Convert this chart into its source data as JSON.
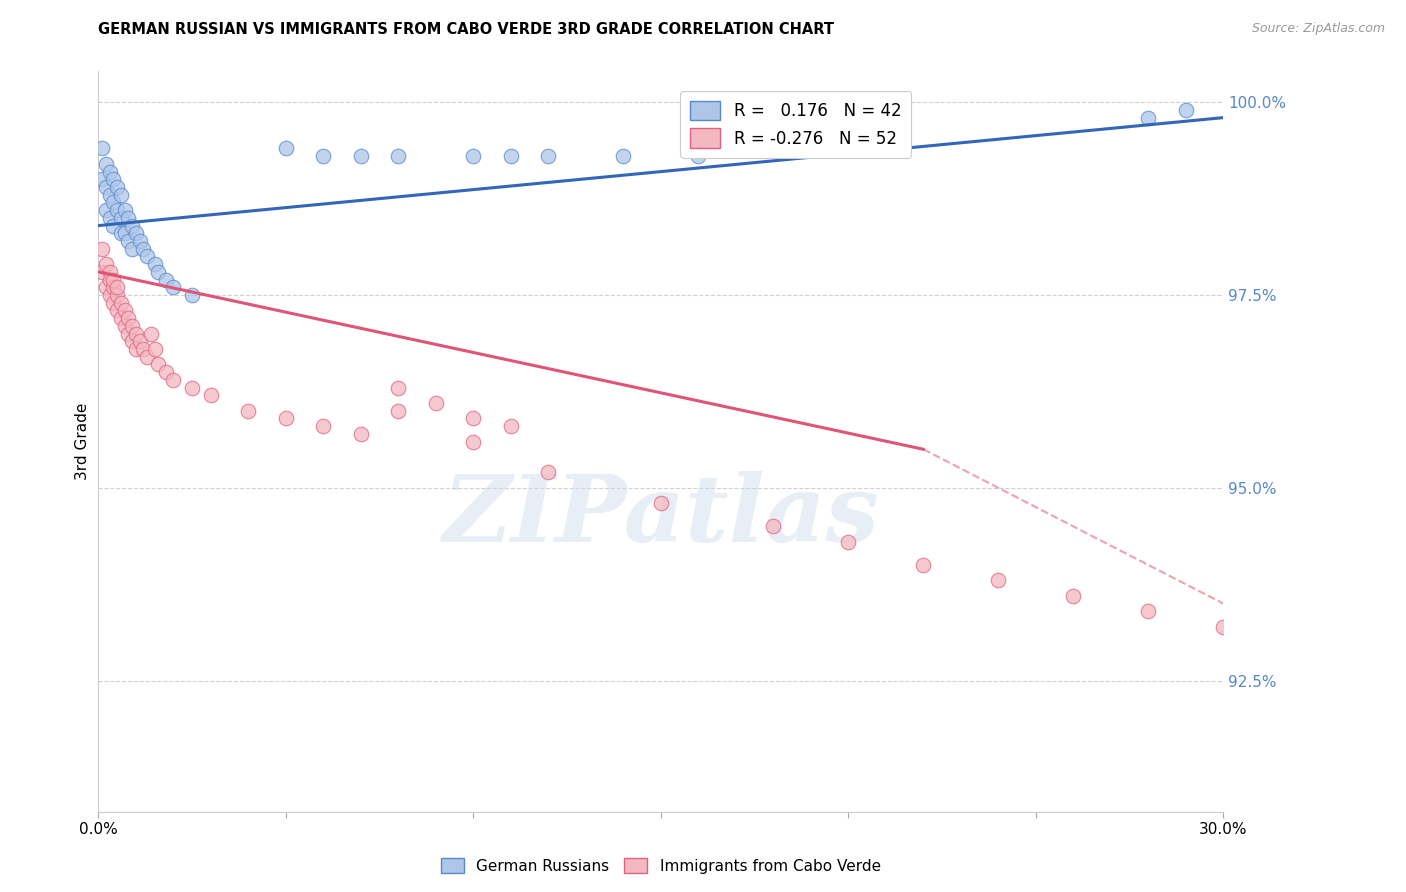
{
  "title": "GERMAN RUSSIAN VS IMMIGRANTS FROM CABO VERDE 3RD GRADE CORRELATION CHART",
  "source": "Source: ZipAtlas.com",
  "ylabel": "3rd Grade",
  "right_yticks": [
    "100.0%",
    "97.5%",
    "95.0%",
    "92.5%"
  ],
  "right_ytick_vals": [
    1.0,
    0.975,
    0.95,
    0.925
  ],
  "legend_blue_label": "R =   0.176   N = 42",
  "legend_pink_label": "R = -0.276   N = 52",
  "blue_fill_color": "#aec6e8",
  "pink_fill_color": "#f4b8c1",
  "blue_edge_color": "#5588cc",
  "pink_edge_color": "#e06080",
  "blue_line_color": "#3366bb",
  "pink_line_color": "#e05575",
  "watermark": "ZIPatlas",
  "xlim": [
    0.0,
    0.3
  ],
  "ylim": [
    0.908,
    1.004
  ],
  "blue_line_y0": 0.984,
  "blue_line_y1": 0.998,
  "pink_line_y0": 0.978,
  "pink_line_y1_solid": 0.955,
  "pink_line_x_solid_end": 0.22,
  "pink_line_y1_dashed": 0.935,
  "blue_scatter_x": [
    0.001,
    0.001,
    0.002,
    0.002,
    0.002,
    0.003,
    0.003,
    0.003,
    0.004,
    0.004,
    0.004,
    0.005,
    0.005,
    0.006,
    0.006,
    0.006,
    0.007,
    0.007,
    0.008,
    0.008,
    0.009,
    0.009,
    0.01,
    0.011,
    0.012,
    0.013,
    0.015,
    0.016,
    0.018,
    0.02,
    0.025,
    0.05,
    0.06,
    0.07,
    0.08,
    0.1,
    0.11,
    0.12,
    0.14,
    0.16,
    0.28,
    0.29
  ],
  "blue_scatter_y": [
    0.994,
    0.99,
    0.992,
    0.989,
    0.986,
    0.991,
    0.988,
    0.985,
    0.99,
    0.987,
    0.984,
    0.989,
    0.986,
    0.988,
    0.985,
    0.983,
    0.986,
    0.983,
    0.985,
    0.982,
    0.984,
    0.981,
    0.983,
    0.982,
    0.981,
    0.98,
    0.979,
    0.978,
    0.977,
    0.976,
    0.975,
    0.994,
    0.993,
    0.993,
    0.993,
    0.993,
    0.993,
    0.993,
    0.993,
    0.993,
    0.998,
    0.999
  ],
  "pink_scatter_x": [
    0.001,
    0.001,
    0.002,
    0.002,
    0.003,
    0.003,
    0.003,
    0.004,
    0.004,
    0.004,
    0.005,
    0.005,
    0.005,
    0.006,
    0.006,
    0.007,
    0.007,
    0.008,
    0.008,
    0.009,
    0.009,
    0.01,
    0.01,
    0.011,
    0.012,
    0.013,
    0.014,
    0.015,
    0.016,
    0.018,
    0.02,
    0.025,
    0.03,
    0.04,
    0.05,
    0.06,
    0.07,
    0.08,
    0.1,
    0.12,
    0.15,
    0.18,
    0.2,
    0.22,
    0.24,
    0.26,
    0.28,
    0.3,
    0.08,
    0.09,
    0.1,
    0.11
  ],
  "pink_scatter_y": [
    0.981,
    0.978,
    0.979,
    0.976,
    0.978,
    0.975,
    0.977,
    0.976,
    0.974,
    0.977,
    0.975,
    0.973,
    0.976,
    0.974,
    0.972,
    0.973,
    0.971,
    0.972,
    0.97,
    0.971,
    0.969,
    0.97,
    0.968,
    0.969,
    0.968,
    0.967,
    0.97,
    0.968,
    0.966,
    0.965,
    0.964,
    0.963,
    0.962,
    0.96,
    0.959,
    0.958,
    0.957,
    0.96,
    0.956,
    0.952,
    0.948,
    0.945,
    0.943,
    0.94,
    0.938,
    0.936,
    0.934,
    0.932,
    0.963,
    0.961,
    0.959,
    0.958
  ]
}
